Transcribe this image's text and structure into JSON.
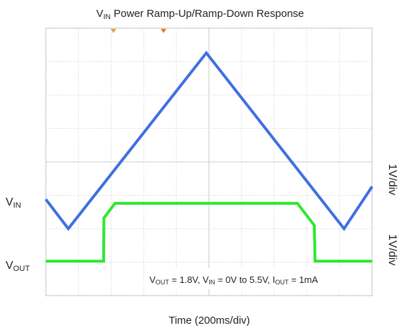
{
  "chart_data": {
    "type": "line",
    "title": [
      "V",
      "IN",
      " Power Ramp-Up/Ramp-Down Response"
    ],
    "x_label": "Time (200ms/div)",
    "annotation": [
      "V",
      "OUT",
      " = 1.8V, V",
      "IN",
      " = 0V to 5.5V, I",
      "OUT",
      " = 1mA"
    ],
    "xlim": [
      0,
      10
    ],
    "ylim": [
      0,
      8
    ],
    "xticks": [
      0,
      1,
      2,
      3,
      4,
      5,
      6,
      7,
      8,
      9,
      10
    ],
    "yticks": [
      0,
      1,
      2,
      3,
      4,
      5,
      6,
      7,
      8
    ],
    "grid": true,
    "series": [
      {
        "label": [
          "V",
          "IN"
        ],
        "scale": "1V/div",
        "color": "#3f6fe0",
        "x": [
          0,
          0.69,
          4.92,
          9.14,
          10
        ],
        "y": [
          2.88,
          2.0,
          7.26,
          2.0,
          3.26
        ]
      },
      {
        "label": [
          "V",
          "OUT"
        ],
        "scale": "1V/div",
        "color": "#2ee82e",
        "x": [
          0,
          1.77,
          1.78,
          2.12,
          7.71,
          8.23,
          8.25,
          10
        ],
        "y": [
          1.03,
          1.03,
          2.32,
          2.76,
          2.76,
          2.1,
          1.03,
          1.03
        ]
      }
    ]
  }
}
